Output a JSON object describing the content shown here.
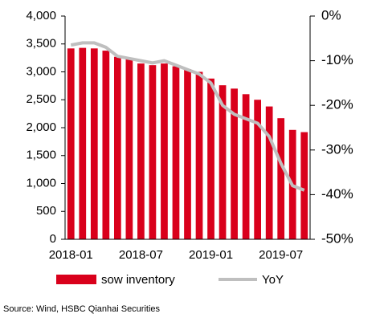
{
  "chart_data": {
    "type": "bar_line",
    "categories": [
      "2018-01",
      null,
      null,
      null,
      null,
      null,
      "2018-07",
      null,
      null,
      null,
      null,
      null,
      "2019-01",
      null,
      null,
      null,
      null,
      null,
      "2019-07",
      null,
      null
    ],
    "series": [
      {
        "name": "sow inventory",
        "color": "#d9001b",
        "type": "bar",
        "values": [
          3420,
          3430,
          3420,
          3380,
          3270,
          3230,
          3150,
          3120,
          3150,
          3100,
          3050,
          3000,
          2880,
          2760,
          2700,
          2600,
          2500,
          2380,
          2170,
          1960,
          1920
        ]
      },
      {
        "name": "YoY",
        "color": "#bfbfbf",
        "type": "line",
        "axis": "y2",
        "values": [
          -6.5,
          -6,
          -6,
          -7,
          -9,
          -9.5,
          -10,
          -10.5,
          -10,
          -11,
          -12,
          -13,
          -15,
          -20,
          -22,
          -23,
          -24,
          -27,
          -33,
          -38,
          -39
        ]
      }
    ],
    "ylim": [
      0,
      4000
    ],
    "yticks": [
      0,
      500,
      {
        "value": 1000,
        "label": "1,000"
      },
      {
        "value": 1500,
        "label": "1,500"
      },
      {
        "value": 2000,
        "label": "2,000"
      },
      {
        "value": 2500,
        "label": "2,500"
      },
      {
        "value": 3000,
        "label": "3,000"
      },
      {
        "value": 3500,
        "label": "3,500"
      },
      {
        "value": 4000,
        "label": "4,000"
      }
    ],
    "y2lim": [
      -50,
      0
    ],
    "y2ticks": [
      {
        "value": 0,
        "label": "0%"
      },
      {
        "value": -10,
        "label": "-10%"
      },
      {
        "value": -20,
        "label": "-20%"
      },
      {
        "value": -30,
        "label": "-30%"
      },
      {
        "value": -40,
        "label": "-40%"
      },
      {
        "value": -50,
        "label": "-50%"
      }
    ],
    "source": "Source: Wind, HSBC Qianhai Securities"
  }
}
